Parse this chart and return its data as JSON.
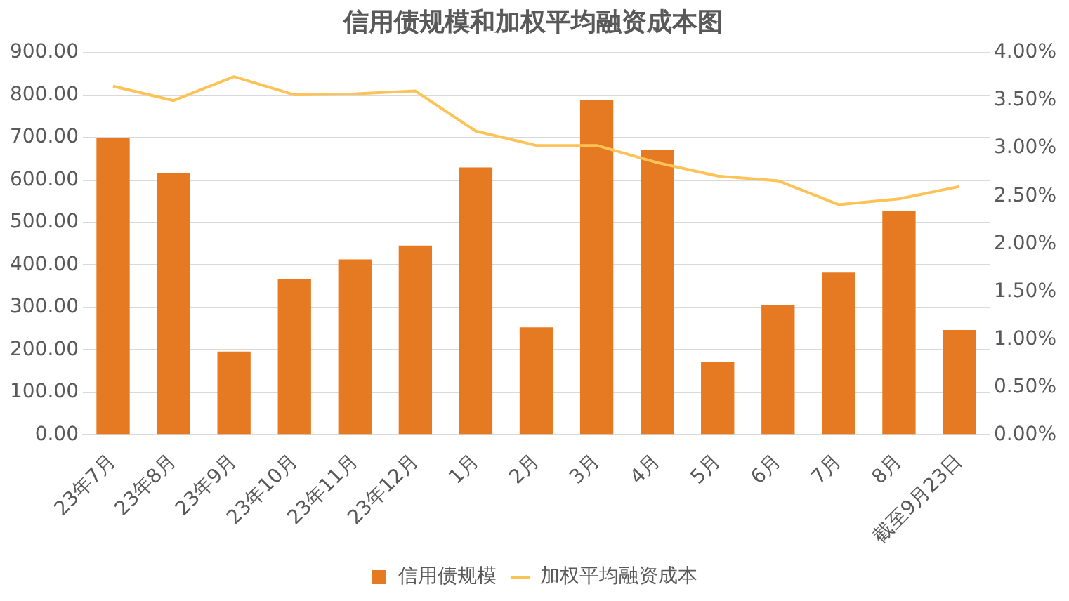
{
  "chart_data": {
    "type": "bar",
    "title": "信用债规模和加权平均融资成本图",
    "categories": [
      "23年7月",
      "23年8月",
      "23年9月",
      "23年10月",
      "23年11月",
      "23年12月",
      "1月",
      "2月",
      "3月",
      "4月",
      "5月",
      "6月",
      "7月",
      "8月",
      "截至9月23日"
    ],
    "series": [
      {
        "name": "信用债规模",
        "color": "#e67a22",
        "values": [
          700,
          617,
          196,
          366,
          413,
          446,
          630,
          253,
          789,
          671,
          171,
          305,
          382,
          527,
          247
        ]
      },
      {
        "name": "加权平均融资成本",
        "type": "line",
        "axis": "y2",
        "color": "#fec257",
        "values": [
          3.65,
          3.5,
          3.75,
          3.56,
          3.57,
          3.6,
          3.18,
          3.03,
          3.03,
          2.85,
          2.71,
          2.66,
          2.41,
          2.47,
          2.6
        ]
      }
    ],
    "ylim": [
      0,
      900
    ],
    "yticks": [
      {
        "value": 0,
        "label": "0.00"
      },
      {
        "value": 100,
        "label": "100.00"
      },
      {
        "value": 200,
        "label": "200.00"
      },
      {
        "value": 300,
        "label": "300.00"
      },
      {
        "value": 400,
        "label": "400.00"
      },
      {
        "value": 500,
        "label": "500.00"
      },
      {
        "value": 600,
        "label": "600.00"
      },
      {
        "value": 700,
        "label": "700.00"
      },
      {
        "value": 800,
        "label": "800.00"
      },
      {
        "value": 900,
        "label": "900.00"
      }
    ],
    "y2lim": [
      0,
      4
    ],
    "y2ticks": [
      {
        "value": 0,
        "label": "0.00%"
      },
      {
        "value": 0.5,
        "label": "0.50%"
      },
      {
        "value": 1,
        "label": "1.00%"
      },
      {
        "value": 1.5,
        "label": "1.50%"
      },
      {
        "value": 2,
        "label": "2.00%"
      },
      {
        "value": 2.5,
        "label": "2.50%"
      },
      {
        "value": 3,
        "label": "3.00%"
      },
      {
        "value": 3.5,
        "label": "3.50%"
      },
      {
        "value": 4,
        "label": "4.00%"
      }
    ],
    "grid": "y",
    "legend": "bottom",
    "marker": "none"
  }
}
